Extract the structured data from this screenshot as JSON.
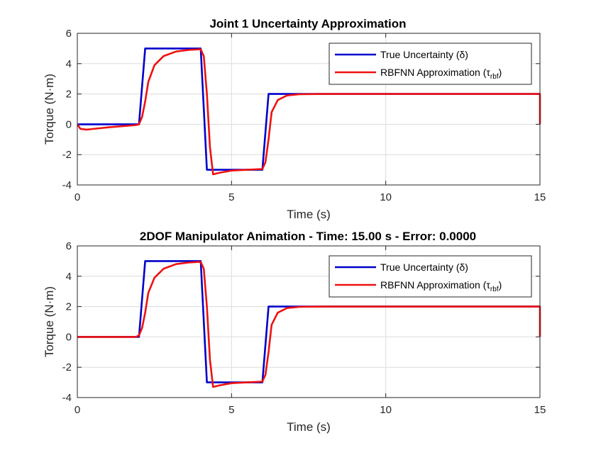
{
  "chart_data": [
    {
      "type": "line",
      "title": "Joint 1 Uncertainty Approximation",
      "xlabel": "Time (s)",
      "ylabel": "Torque (N·m)",
      "xlim": [
        0,
        15
      ],
      "ylim": [
        -4,
        6
      ],
      "xticks": [
        "0",
        "5",
        "10",
        "15"
      ],
      "yticks": [
        "-4",
        "-2",
        "0",
        "2",
        "4",
        "6"
      ],
      "grid": true,
      "legend_position": "top-right",
      "series": [
        {
          "name": "True Uncertainty (δ)",
          "color": "#0000cc",
          "x": [
            0,
            2.0,
            2.2,
            4.0,
            4.2,
            6.0,
            6.2,
            15.0
          ],
          "y": [
            0,
            0,
            5,
            5,
            -3,
            -3,
            2,
            2
          ]
        },
        {
          "name": "RBFNN Approximation (τ",
          "name_sub": "rbf",
          "name_end": ")",
          "color": "#ee1111",
          "x": [
            0,
            0.1,
            0.3,
            1.0,
            1.9,
            2.0,
            2.1,
            2.2,
            2.3,
            2.5,
            2.8,
            3.2,
            3.6,
            4.0,
            4.1,
            4.2,
            4.3,
            4.4,
            4.6,
            5.0,
            5.5,
            6.0,
            6.1,
            6.2,
            6.3,
            6.5,
            6.8,
            7.2,
            8.0,
            15.0,
            15.0
          ],
          "y": [
            0,
            -0.3,
            -0.35,
            -0.2,
            -0.05,
            0.0,
            0.5,
            1.5,
            2.8,
            3.9,
            4.5,
            4.8,
            4.9,
            4.95,
            4.5,
            2.0,
            -1.5,
            -3.3,
            -3.2,
            -3.05,
            -3.0,
            -2.95,
            -2.5,
            -1.0,
            0.8,
            1.6,
            1.9,
            1.98,
            2.0,
            2.0,
            0.0
          ]
        }
      ]
    },
    {
      "type": "line",
      "title": "2DOF Manipulator Animation - Time: 15.00 s - Error: 0.0000",
      "xlabel": "Time (s)",
      "ylabel": "Torque (N·m)",
      "xlim": [
        0,
        15
      ],
      "ylim": [
        -4,
        6
      ],
      "xticks": [
        "0",
        "5",
        "10",
        "15"
      ],
      "yticks": [
        "-4",
        "-2",
        "0",
        "2",
        "4",
        "6"
      ],
      "grid": true,
      "legend_position": "top-right",
      "series": [
        {
          "name": "True Uncertainty (δ)",
          "color": "#0000cc",
          "x": [
            0,
            2.0,
            2.2,
            4.0,
            4.2,
            6.0,
            6.2,
            15.0
          ],
          "y": [
            0,
            0,
            5,
            5,
            -3,
            -3,
            2,
            2
          ]
        },
        {
          "name": "RBFNN Approximation (τ",
          "name_sub": "rbf",
          "name_end": ")",
          "color": "#ee1111",
          "x": [
            0,
            1.0,
            1.9,
            2.0,
            2.1,
            2.2,
            2.3,
            2.5,
            2.8,
            3.2,
            3.6,
            4.0,
            4.1,
            4.2,
            4.3,
            4.4,
            4.6,
            5.0,
            5.5,
            6.0,
            6.1,
            6.2,
            6.3,
            6.5,
            6.8,
            7.2,
            8.0,
            15.0,
            15.0
          ],
          "y": [
            0,
            0,
            0,
            0.1,
            0.6,
            1.6,
            2.9,
            3.9,
            4.5,
            4.8,
            4.9,
            4.95,
            4.5,
            2.0,
            -1.5,
            -3.3,
            -3.2,
            -3.05,
            -3.0,
            -2.95,
            -2.5,
            -1.0,
            0.8,
            1.6,
            1.9,
            1.98,
            2.0,
            2.0,
            0.0
          ]
        }
      ]
    }
  ]
}
